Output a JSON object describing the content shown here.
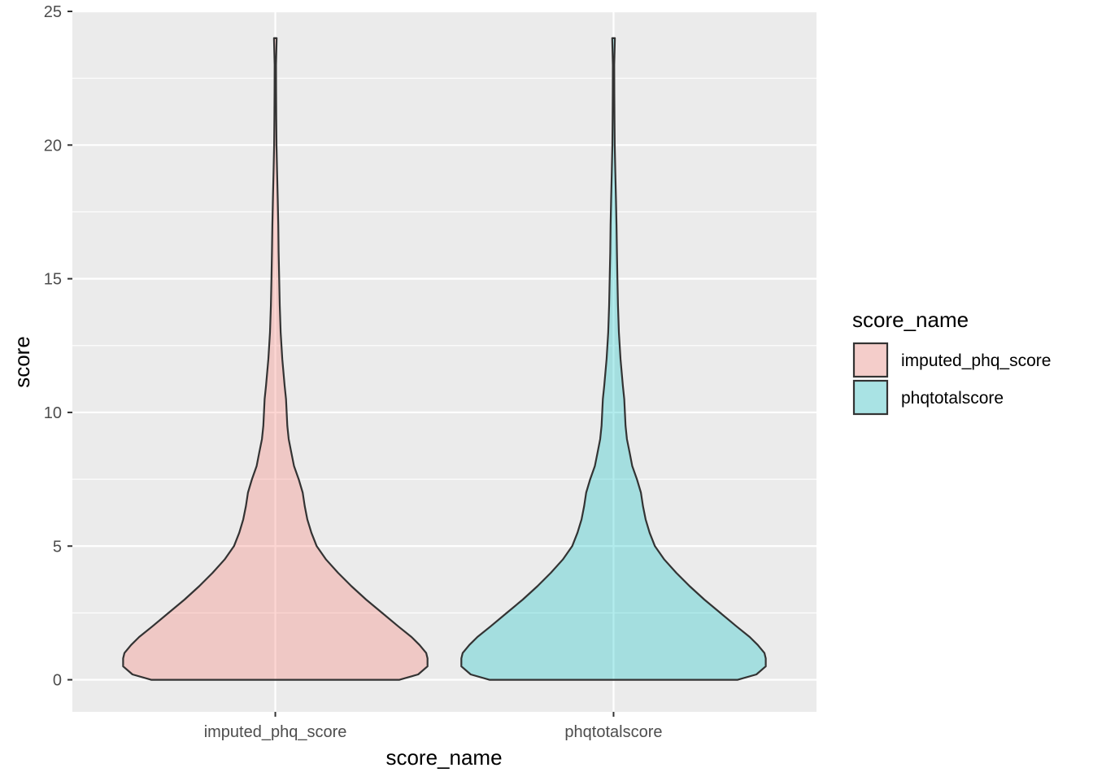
{
  "chart_data": {
    "type": "violin",
    "xlabel": "score_name",
    "ylabel": "score",
    "ylim": [
      -1.2,
      25
    ],
    "yticks": [
      0,
      5,
      10,
      15,
      20,
      25
    ],
    "y_tick_labels": [
      "0",
      "5",
      "10",
      "15",
      "20",
      "25"
    ],
    "grid": true,
    "legend": {
      "title": "score_name",
      "placement": "right"
    },
    "categories": [
      "imputed_phq_score",
      "phqtotalscore"
    ],
    "series": [
      {
        "name": "imputed_phq_score",
        "color": "#F8766D",
        "fill_opacity": 0.3,
        "min": 0,
        "max": 24,
        "profile": [
          [
            0,
            9.3
          ],
          [
            0.2,
            10.7
          ],
          [
            0.5,
            11.4
          ],
          [
            0.8,
            11.4
          ],
          [
            1.0,
            11.3
          ],
          [
            1.3,
            10.8
          ],
          [
            1.6,
            10.2
          ],
          [
            2.0,
            9.2
          ],
          [
            2.5,
            8.0
          ],
          [
            3.0,
            6.8
          ],
          [
            3.5,
            5.7
          ],
          [
            4.0,
            4.7
          ],
          [
            4.5,
            3.8
          ],
          [
            5.0,
            3.1
          ],
          [
            5.5,
            2.7
          ],
          [
            6.0,
            2.4
          ],
          [
            6.5,
            2.2
          ],
          [
            7.0,
            2.05
          ],
          [
            7.5,
            1.75
          ],
          [
            8.0,
            1.4
          ],
          [
            8.5,
            1.2
          ],
          [
            9.0,
            1.0
          ],
          [
            9.5,
            0.9
          ],
          [
            10.0,
            0.85
          ],
          [
            10.5,
            0.8
          ],
          [
            11.0,
            0.7
          ],
          [
            12.0,
            0.52
          ],
          [
            13.0,
            0.4
          ],
          [
            14.0,
            0.33
          ],
          [
            15.0,
            0.29
          ],
          [
            16.0,
            0.25
          ],
          [
            17.0,
            0.22
          ],
          [
            18.0,
            0.18
          ],
          [
            19.0,
            0.13
          ],
          [
            20.0,
            0.09
          ],
          [
            21.0,
            0.07
          ],
          [
            22.0,
            0.06
          ],
          [
            23.0,
            0.05
          ],
          [
            24.0,
            0.1
          ]
        ]
      },
      {
        "name": "phqtotalscore",
        "color": "#00BFC4",
        "fill_opacity": 0.3,
        "min": 0,
        "max": 24,
        "profile": [
          [
            0,
            9.3
          ],
          [
            0.2,
            10.7
          ],
          [
            0.5,
            11.4
          ],
          [
            0.8,
            11.4
          ],
          [
            1.0,
            11.3
          ],
          [
            1.3,
            10.8
          ],
          [
            1.6,
            10.2
          ],
          [
            2.0,
            9.2
          ],
          [
            2.5,
            8.0
          ],
          [
            3.0,
            6.8
          ],
          [
            3.5,
            5.7
          ],
          [
            4.0,
            4.7
          ],
          [
            4.5,
            3.8
          ],
          [
            5.0,
            3.1
          ],
          [
            5.5,
            2.7
          ],
          [
            6.0,
            2.4
          ],
          [
            6.5,
            2.2
          ],
          [
            7.0,
            2.05
          ],
          [
            7.5,
            1.75
          ],
          [
            8.0,
            1.4
          ],
          [
            8.5,
            1.2
          ],
          [
            9.0,
            1.0
          ],
          [
            9.5,
            0.9
          ],
          [
            10.0,
            0.85
          ],
          [
            10.5,
            0.8
          ],
          [
            11.0,
            0.7
          ],
          [
            12.0,
            0.52
          ],
          [
            13.0,
            0.4
          ],
          [
            14.0,
            0.33
          ],
          [
            15.0,
            0.29
          ],
          [
            16.0,
            0.25
          ],
          [
            17.0,
            0.22
          ],
          [
            18.0,
            0.18
          ],
          [
            19.0,
            0.13
          ],
          [
            20.0,
            0.09
          ],
          [
            21.0,
            0.07
          ],
          [
            22.0,
            0.06
          ],
          [
            23.0,
            0.05
          ],
          [
            24.0,
            0.1
          ]
        ]
      }
    ]
  },
  "colors": {
    "panel_background": "#EBEBEB",
    "grid_line": "#FFFFFF",
    "outline": "#333333"
  }
}
